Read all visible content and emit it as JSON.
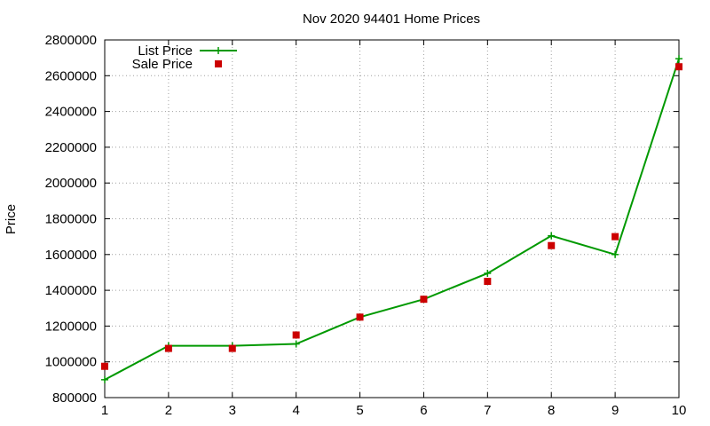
{
  "chart_data": {
    "type": "line",
    "title": "Nov 2020 94401 Home Prices",
    "xlabel": "",
    "ylabel": "Price",
    "xlim": [
      1,
      10
    ],
    "ylim": [
      800000,
      2800000
    ],
    "x_ticks": [
      1,
      2,
      3,
      4,
      5,
      6,
      7,
      8,
      9,
      10
    ],
    "y_ticks": [
      800000,
      1000000,
      1200000,
      1400000,
      1600000,
      1800000,
      2000000,
      2200000,
      2400000,
      2600000,
      2800000
    ],
    "grid": true,
    "legend_position": "top-left",
    "series": [
      {
        "name": "List Price",
        "style": "line with plus markers",
        "color": "#009900",
        "x": [
          1,
          2,
          3,
          4,
          5,
          6,
          7,
          8,
          9,
          10
        ],
        "values": [
          900000,
          1090000,
          1090000,
          1100000,
          1250000,
          1350000,
          1495000,
          1705000,
          1600000,
          2695000
        ]
      },
      {
        "name": "Sale Price",
        "style": "square points",
        "color": "#cc0000",
        "x": [
          1,
          2,
          3,
          4,
          5,
          6,
          7,
          8,
          9,
          10
        ],
        "values": [
          975000,
          1075000,
          1075000,
          1150000,
          1250000,
          1350000,
          1450000,
          1650000,
          1700000,
          2650000
        ]
      }
    ]
  }
}
